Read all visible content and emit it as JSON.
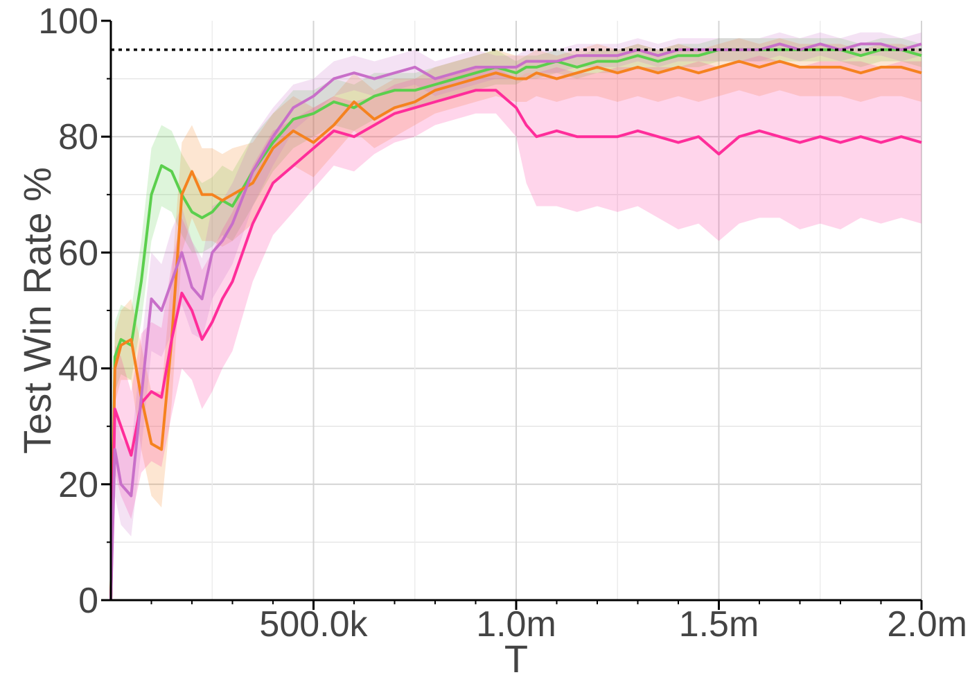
{
  "chart_data": {
    "type": "line",
    "xlabel": "T",
    "ylabel": "Test Win Rate %",
    "xlim": [
      0,
      2000000
    ],
    "ylim": [
      0,
      100
    ],
    "x_ticks": [
      {
        "value": 500000,
        "label": "500.0k"
      },
      {
        "value": 1000000,
        "label": "1.0m"
      },
      {
        "value": 1500000,
        "label": "1.5m"
      },
      {
        "value": 2000000,
        "label": "2.0m"
      }
    ],
    "y_ticks": [
      {
        "value": 0,
        "label": "0"
      },
      {
        "value": 20,
        "label": "20"
      },
      {
        "value": 40,
        "label": "40"
      },
      {
        "value": 60,
        "label": "60"
      },
      {
        "value": 80,
        "label": "80"
      },
      {
        "value": 100,
        "label": "100"
      }
    ],
    "grid": true,
    "reference_line": {
      "y": 95,
      "style": "dotted",
      "color": "#000000"
    },
    "x": [
      0,
      10000,
      25000,
      50000,
      75000,
      100000,
      125000,
      150000,
      175000,
      200000,
      225000,
      250000,
      275000,
      300000,
      350000,
      400000,
      450000,
      500000,
      550000,
      600000,
      650000,
      700000,
      750000,
      800000,
      850000,
      900000,
      950000,
      1000000,
      1025000,
      1050000,
      1100000,
      1150000,
      1200000,
      1250000,
      1300000,
      1350000,
      1400000,
      1450000,
      1500000,
      1550000,
      1600000,
      1650000,
      1700000,
      1750000,
      1800000,
      1850000,
      1900000,
      1950000,
      2000000
    ],
    "series": [
      {
        "color": "#5bcf4d",
        "values": [
          0,
          42,
          45,
          44,
          55,
          70,
          75,
          74,
          70,
          67,
          66,
          67,
          69,
          68,
          74,
          79,
          83,
          84,
          86,
          85,
          87,
          88,
          88,
          89,
          90,
          91,
          92,
          91,
          92,
          92,
          93,
          92,
          93,
          93,
          94,
          93,
          94,
          94,
          95,
          95,
          95,
          95,
          95,
          95,
          95,
          94,
          95,
          95,
          94
        ],
        "lower": [
          0,
          36,
          39,
          38,
          48,
          62,
          68,
          67,
          63,
          60,
          60,
          61,
          63,
          62,
          68,
          74,
          78,
          80,
          82,
          81,
          83,
          85,
          85,
          86,
          87,
          88,
          89,
          89,
          90,
          90,
          91,
          90,
          91,
          91,
          92,
          91,
          92,
          92,
          93,
          93,
          93,
          93,
          93,
          93,
          93,
          92,
          93,
          93,
          92
        ],
        "upper": [
          0,
          48,
          51,
          50,
          62,
          78,
          82,
          81,
          77,
          74,
          72,
          73,
          75,
          74,
          80,
          84,
          88,
          88,
          90,
          89,
          91,
          91,
          91,
          92,
          93,
          94,
          95,
          93,
          94,
          94,
          95,
          94,
          95,
          95,
          96,
          95,
          96,
          96,
          97,
          97,
          97,
          97,
          97,
          97,
          97,
          96,
          97,
          97,
          96
        ]
      },
      {
        "color": "#f5821f",
        "values": [
          0,
          40,
          44,
          45,
          35,
          27,
          26,
          45,
          70,
          74,
          70,
          70,
          69,
          70,
          72,
          78,
          81,
          79,
          82,
          86,
          83,
          85,
          86,
          88,
          89,
          90,
          91,
          90,
          90,
          91,
          90,
          91,
          92,
          91,
          92,
          91,
          92,
          91,
          92,
          93,
          92,
          93,
          92,
          92,
          92,
          91,
          92,
          92,
          91
        ],
        "lower": [
          0,
          34,
          38,
          38,
          26,
          18,
          16,
          34,
          60,
          66,
          62,
          62,
          61,
          62,
          65,
          72,
          75,
          73,
          77,
          81,
          78,
          80,
          82,
          84,
          85,
          86,
          87,
          86,
          86,
          87,
          86,
          87,
          87,
          86,
          87,
          86,
          87,
          86,
          87,
          88,
          87,
          88,
          87,
          87,
          87,
          86,
          87,
          87,
          86
        ],
        "upper": [
          0,
          46,
          50,
          52,
          44,
          36,
          36,
          56,
          79,
          82,
          78,
          78,
          77,
          78,
          79,
          84,
          87,
          85,
          87,
          91,
          88,
          90,
          90,
          92,
          93,
          94,
          95,
          94,
          94,
          95,
          94,
          95,
          96,
          95,
          96,
          95,
          96,
          95,
          96,
          97,
          96,
          97,
          96,
          96,
          96,
          95,
          96,
          96,
          95
        ]
      },
      {
        "color": "#ff2d9a",
        "values": [
          0,
          33,
          30,
          25,
          34,
          36,
          35,
          45,
          53,
          50,
          45,
          48,
          52,
          55,
          65,
          72,
          75,
          78,
          81,
          80,
          82,
          84,
          85,
          86,
          87,
          88,
          88,
          85,
          82,
          80,
          81,
          80,
          80,
          80,
          81,
          80,
          79,
          80,
          77,
          80,
          81,
          80,
          79,
          80,
          79,
          80,
          79,
          80,
          79
        ],
        "lower": [
          0,
          22,
          18,
          14,
          22,
          24,
          23,
          32,
          40,
          38,
          33,
          36,
          40,
          43,
          55,
          63,
          67,
          71,
          75,
          74,
          77,
          79,
          80,
          82,
          83,
          84,
          84,
          80,
          72,
          68,
          68,
          67,
          68,
          67,
          68,
          66,
          64,
          65,
          62,
          65,
          66,
          66,
          64,
          65,
          64,
          66,
          65,
          66,
          65
        ],
        "upper": [
          0,
          44,
          42,
          36,
          46,
          48,
          47,
          58,
          66,
          62,
          57,
          60,
          64,
          67,
          75,
          81,
          83,
          85,
          87,
          86,
          87,
          89,
          90,
          90,
          91,
          92,
          92,
          90,
          91,
          91,
          92,
          91,
          91,
          92,
          92,
          92,
          92,
          93,
          92,
          93,
          94,
          93,
          92,
          93,
          93,
          93,
          92,
          93,
          93
        ]
      },
      {
        "color": "#c86fc9",
        "values": [
          0,
          26,
          20,
          18,
          35,
          52,
          50,
          55,
          60,
          54,
          52,
          60,
          62,
          65,
          74,
          80,
          85,
          87,
          90,
          91,
          90,
          91,
          92,
          90,
          91,
          92,
          92,
          92,
          93,
          93,
          93,
          94,
          94,
          94,
          95,
          94,
          95,
          95,
          95,
          95,
          95,
          96,
          95,
          96,
          95,
          96,
          96,
          95,
          96
        ],
        "lower": [
          0,
          18,
          13,
          11,
          26,
          43,
          42,
          46,
          51,
          46,
          45,
          52,
          55,
          58,
          68,
          75,
          81,
          84,
          87,
          88,
          87,
          88,
          89,
          87,
          88,
          89,
          90,
          90,
          91,
          91,
          91,
          92,
          92,
          92,
          93,
          92,
          93,
          93,
          93,
          93,
          93,
          94,
          93,
          94,
          93,
          94,
          94,
          93,
          94
        ],
        "upper": [
          0,
          34,
          28,
          26,
          44,
          60,
          58,
          64,
          68,
          62,
          59,
          68,
          69,
          72,
          80,
          85,
          89,
          90,
          93,
          94,
          93,
          94,
          95,
          93,
          94,
          95,
          94,
          94,
          95,
          95,
          95,
          96,
          96,
          96,
          97,
          96,
          97,
          97,
          97,
          97,
          97,
          98,
          97,
          98,
          97,
          98,
          98,
          97,
          98
        ]
      }
    ]
  }
}
